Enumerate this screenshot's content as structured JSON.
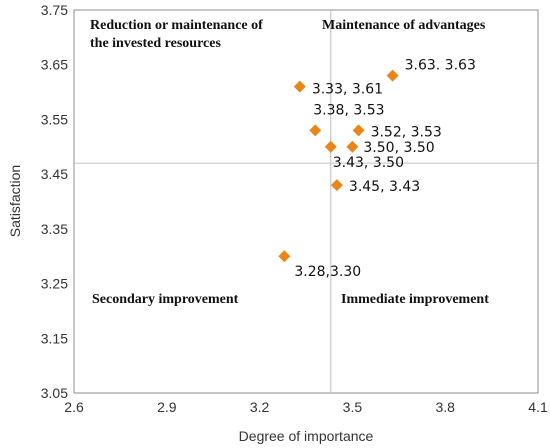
{
  "chart_data": {
    "type": "scatter",
    "xlabel": "Degree of importance",
    "ylabel": "Satisfaction",
    "xlim": [
      2.6,
      4.1
    ],
    "ylim": [
      3.05,
      3.75
    ],
    "x_ticks": [
      "2.6",
      "2.9",
      "3.2",
      "3.5",
      "3.8",
      "4.1"
    ],
    "y_ticks": [
      "3.05",
      "3.15",
      "3.25",
      "3.35",
      "3.45",
      "3.55",
      "3.65",
      "3.75"
    ],
    "reference_lines": {
      "x": 3.43,
      "y": 3.47
    },
    "quadrant_labels": {
      "top_left": [
        "Reduction or maintenance of",
        "the invested resources"
      ],
      "top_right": [
        "Maintenance of advantages"
      ],
      "bottom_left": [
        "Secondary improvement"
      ],
      "bottom_right": [
        "Immediate improvement"
      ]
    },
    "marker_color": "#E8861A",
    "marker_shape": "diamond",
    "grid": false,
    "points": [
      {
        "x": 3.63,
        "y": 3.63,
        "label": "3.63. 3.63"
      },
      {
        "x": 3.33,
        "y": 3.61,
        "label": "3.33, 3.61"
      },
      {
        "x": 3.38,
        "y": 3.53,
        "label": "3.38, 3.53"
      },
      {
        "x": 3.52,
        "y": 3.53,
        "label": "3.52, 3.53"
      },
      {
        "x": 3.5,
        "y": 3.5,
        "label": "3.50, 3.50"
      },
      {
        "x": 3.43,
        "y": 3.5,
        "label": "3.43, 3.50"
      },
      {
        "x": 3.45,
        "y": 3.43,
        "label": "3.45, 3.43"
      },
      {
        "x": 3.28,
        "y": 3.3,
        "label": "3.28,3.30"
      }
    ]
  }
}
